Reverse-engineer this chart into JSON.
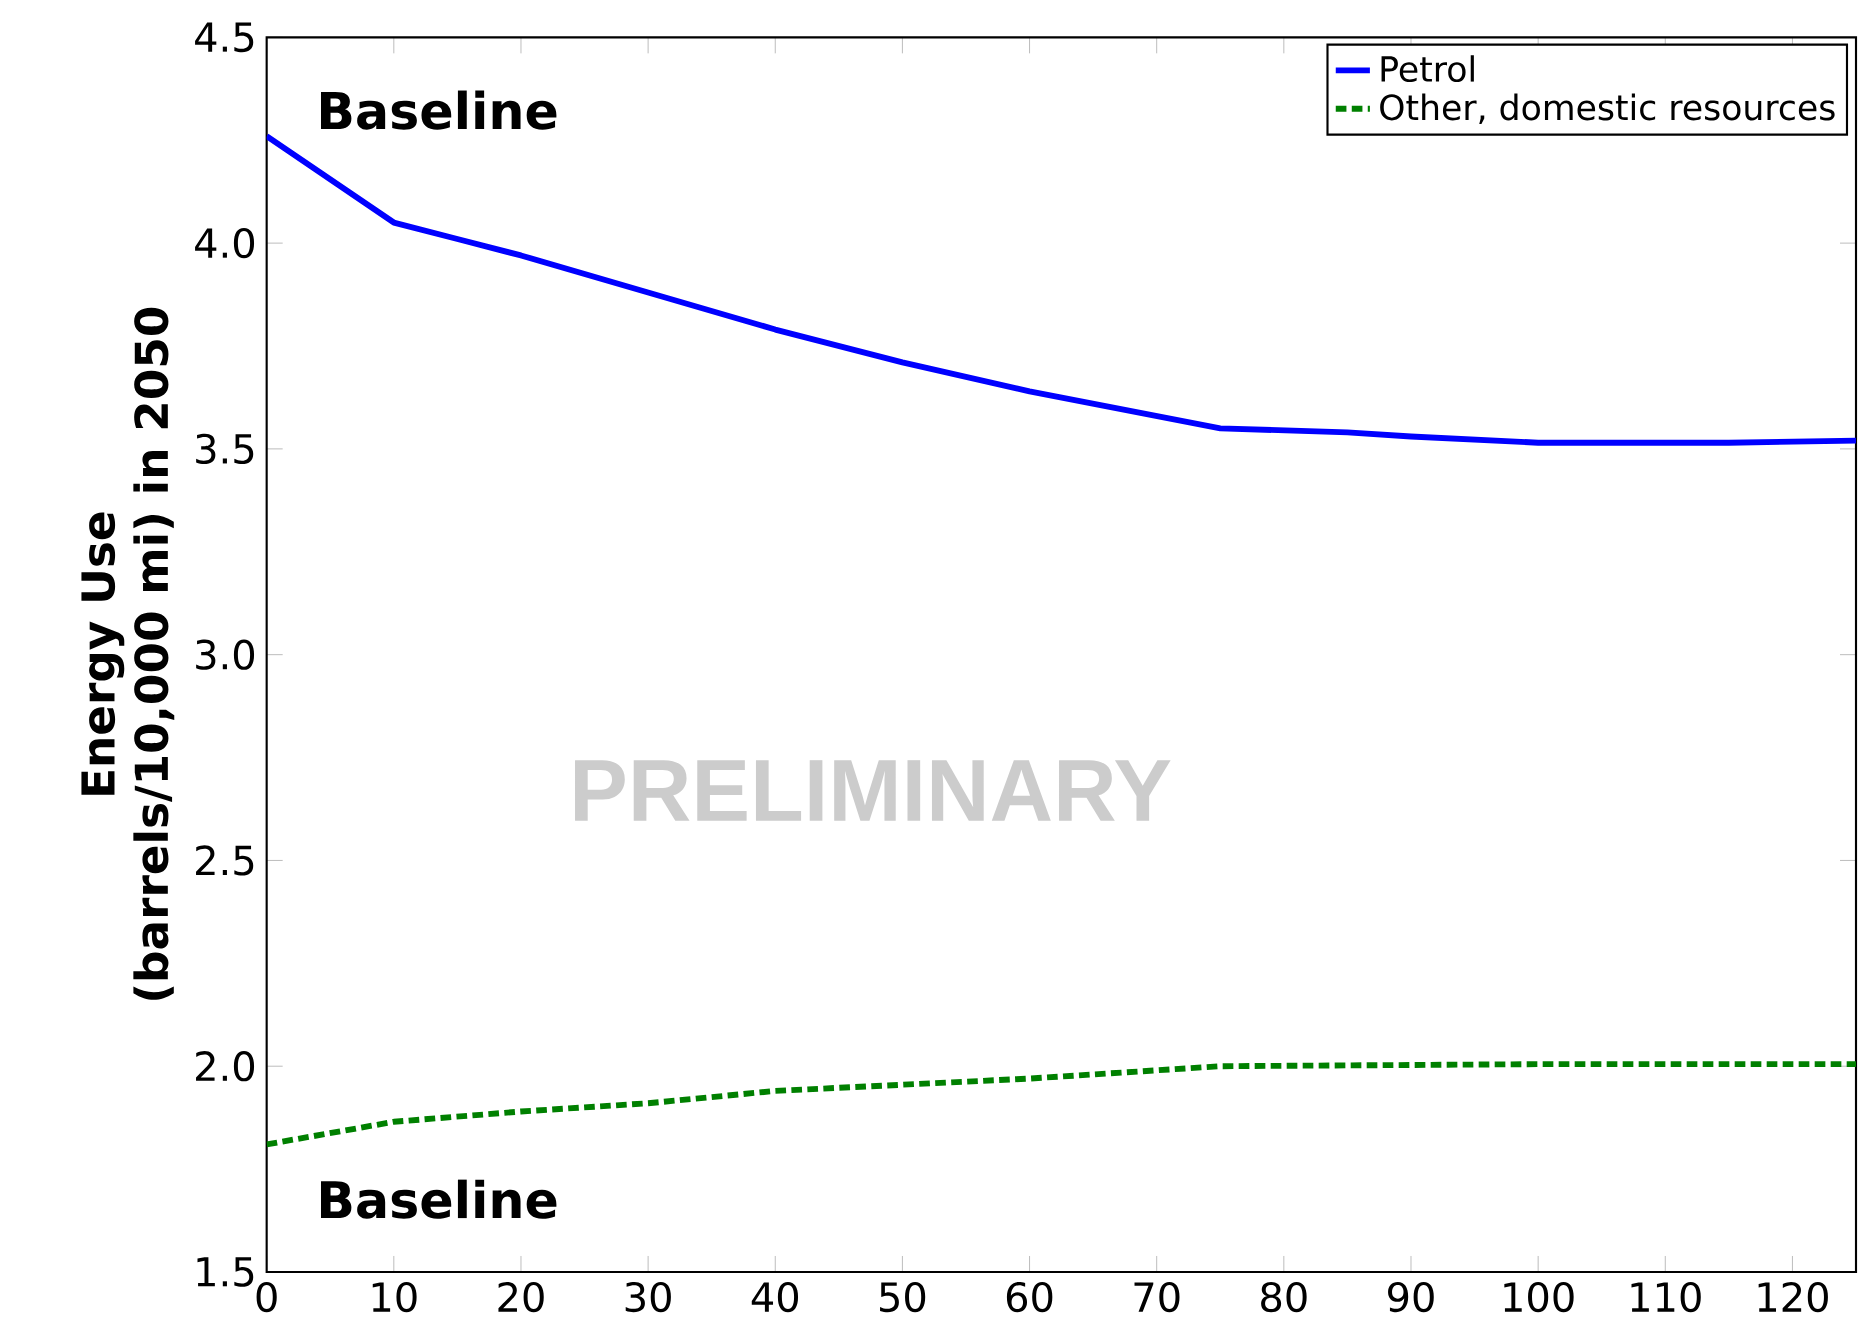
{
  "chart_data": {
    "type": "line",
    "ylabel": "Energy Use\n(barrels/10,000 mi) in 2050",
    "xlim": [
      0,
      125
    ],
    "ylim": [
      1.5,
      4.5
    ],
    "xticks": [
      0,
      10,
      20,
      30,
      40,
      50,
      60,
      70,
      80,
      90,
      100,
      110,
      120
    ],
    "yticks": [
      {
        "value": 1.5,
        "label": "1.5"
      },
      {
        "value": 2.0,
        "label": "2.0"
      },
      {
        "value": 2.5,
        "label": "2.5"
      },
      {
        "value": 3.0,
        "label": "3.0"
      },
      {
        "value": 3.5,
        "label": "3.5"
      },
      {
        "value": 4.0,
        "label": "4.0"
      },
      {
        "value": 4.5,
        "label": "4.5"
      }
    ],
    "legend": "top right",
    "grid": false,
    "marker": "none",
    "annotations": [
      "Baseline",
      "PRELIMINARY",
      "Baseline"
    ],
    "series": [
      {
        "name": "Petrol",
        "color": "#0000ff",
        "line_style": "solid",
        "x": [
          0,
          10,
          15,
          20,
          30,
          40,
          50,
          60,
          75,
          85,
          90,
          100,
          115,
          125
        ],
        "values": [
          4.26,
          4.05,
          4.01,
          3.97,
          3.88,
          3.79,
          3.71,
          3.64,
          3.55,
          3.54,
          3.53,
          3.515,
          3.515,
          3.52
        ]
      },
      {
        "name": "Other, domestic resources",
        "color": "#008000",
        "line_style": "dashed",
        "x": [
          0,
          10,
          20,
          30,
          40,
          50,
          60,
          75,
          100,
          125
        ],
        "values": [
          1.81,
          1.865,
          1.89,
          1.91,
          1.94,
          1.955,
          1.97,
          2.0,
          2.005,
          2.005
        ]
      }
    ]
  }
}
